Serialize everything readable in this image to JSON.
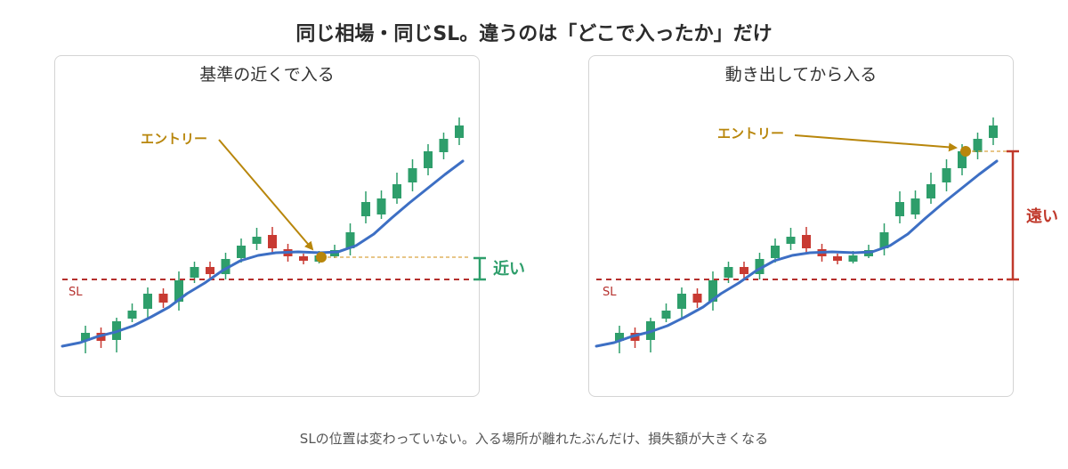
{
  "title": "同じ相場・同じSL。違うのは「どこで入ったか」だけ",
  "panels": {
    "left": {
      "title": "基準の近くで入る",
      "entry_label": "エントリー",
      "sl_label": "SL",
      "distance_label": "近い"
    },
    "right": {
      "title": "動き出してから入る",
      "entry_label": "エントリー",
      "sl_label": "SL",
      "distance_label": "遠い"
    }
  },
  "caption": "SLの位置は変わっていない。入る場所が離れたぶんだけ、損失額が大きくなる",
  "colors": {
    "bull": "#2e9e6b",
    "bear": "#c83a32",
    "ma_line": "#3d6fc4",
    "sl_line": "#b5302d",
    "entry_annotation": "#b8860b",
    "near_bracket": "#2e9e6b",
    "far_bracket": "#c0392b"
  }
}
